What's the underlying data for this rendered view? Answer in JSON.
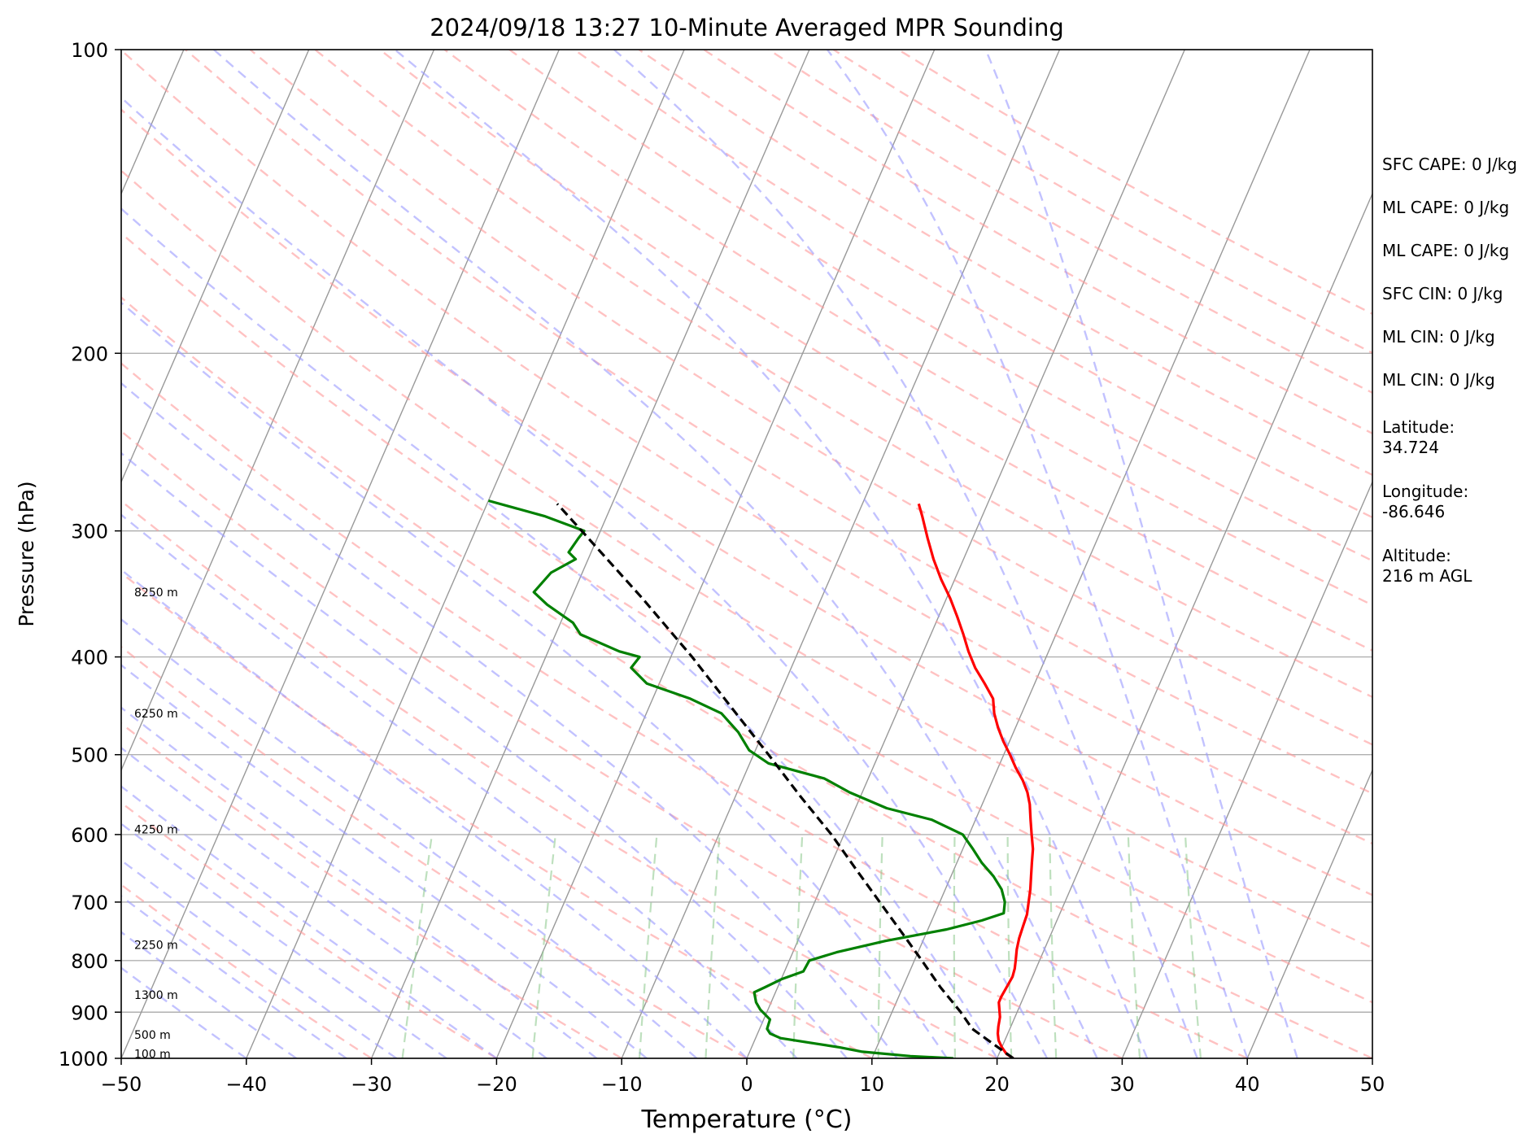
{
  "chart_data": {
    "type": "skew-t",
    "title": "2024/09/18 13:27 10-Minute Averaged MPR Sounding",
    "xlabel": "Temperature (°C)",
    "ylabel": "Pressure (hPa)",
    "xlim": [
      -50,
      50
    ],
    "ylim": [
      1000,
      100
    ],
    "yscale": "log",
    "x_ticks": [
      "−50",
      "−40",
      "−30",
      "−20",
      "−10",
      "0",
      "10",
      "20",
      "30",
      "40",
      "50"
    ],
    "y_ticks": [
      "100",
      "200",
      "300",
      "400",
      "500",
      "600",
      "700",
      "800",
      "900",
      "1000"
    ],
    "grid": true,
    "height_labels": [
      {
        "label": "100 m",
        "p": 990
      },
      {
        "label": "500 m",
        "p": 948
      },
      {
        "label": "1300 m",
        "p": 865
      },
      {
        "label": "2250 m",
        "p": 772
      },
      {
        "label": "4250 m",
        "p": 593
      },
      {
        "label": "6250 m",
        "p": 455
      },
      {
        "label": "8250 m",
        "p": 345
      }
    ],
    "series": [
      {
        "role": "temperature",
        "color": "#ff0000",
        "points": [
          [
            1000,
            21.3
          ],
          [
            990,
            20.6
          ],
          [
            975,
            20.0
          ],
          [
            960,
            19.5
          ],
          [
            945,
            19.2
          ],
          [
            930,
            19.0
          ],
          [
            910,
            18.8
          ],
          [
            895,
            18.5
          ],
          [
            880,
            18.2
          ],
          [
            868,
            18.2
          ],
          [
            850,
            18.3
          ],
          [
            830,
            18.4
          ],
          [
            815,
            18.3
          ],
          [
            800,
            18.1
          ],
          [
            780,
            17.8
          ],
          [
            760,
            17.6
          ],
          [
            740,
            17.5
          ],
          [
            720,
            17.4
          ],
          [
            700,
            17.1
          ],
          [
            680,
            16.8
          ],
          [
            660,
            16.4
          ],
          [
            640,
            16.0
          ],
          [
            620,
            15.6
          ],
          [
            600,
            15.0
          ],
          [
            580,
            14.4
          ],
          [
            560,
            13.8
          ],
          [
            545,
            13.2
          ],
          [
            530,
            12.4
          ],
          [
            515,
            11.4
          ],
          [
            500,
            10.5
          ],
          [
            485,
            9.5
          ],
          [
            470,
            8.6
          ],
          [
            455,
            7.8
          ],
          [
            440,
            7.2
          ],
          [
            425,
            6.0
          ],
          [
            410,
            4.7
          ],
          [
            395,
            3.6
          ],
          [
            380,
            2.6
          ],
          [
            365,
            1.5
          ],
          [
            350,
            0.3
          ],
          [
            335,
            -1.1
          ],
          [
            320,
            -2.4
          ],
          [
            305,
            -3.6
          ],
          [
            290,
            -4.8
          ],
          [
            282,
            -5.5
          ]
        ]
      },
      {
        "role": "dewpoint",
        "color": "#008000",
        "points": [
          [
            1000,
            16.5
          ],
          [
            995,
            13.0
          ],
          [
            985,
            9.0
          ],
          [
            975,
            7.0
          ],
          [
            965,
            4.5
          ],
          [
            955,
            2.0
          ],
          [
            945,
            1.0
          ],
          [
            935,
            0.6
          ],
          [
            915,
            0.5
          ],
          [
            895,
            -0.6
          ],
          [
            880,
            -1.2
          ],
          [
            860,
            -1.7
          ],
          [
            850,
            -1.0
          ],
          [
            835,
            0.0
          ],
          [
            820,
            1.5
          ],
          [
            800,
            1.6
          ],
          [
            785,
            3.5
          ],
          [
            765,
            7.0
          ],
          [
            745,
            11.5
          ],
          [
            730,
            14.0
          ],
          [
            718,
            15.5
          ],
          [
            700,
            15.2
          ],
          [
            680,
            14.5
          ],
          [
            660,
            13.4
          ],
          [
            640,
            12.0
          ],
          [
            620,
            10.8
          ],
          [
            600,
            9.5
          ],
          [
            580,
            6.5
          ],
          [
            565,
            2.5
          ],
          [
            545,
            -1.0
          ],
          [
            528,
            -3.5
          ],
          [
            510,
            -8.5
          ],
          [
            495,
            -10.5
          ],
          [
            475,
            -12.0
          ],
          [
            455,
            -14.0
          ],
          [
            440,
            -17.0
          ],
          [
            425,
            -21.0
          ],
          [
            410,
            -22.8
          ],
          [
            400,
            -22.5
          ],
          [
            395,
            -24.3
          ],
          [
            380,
            -28.0
          ],
          [
            370,
            -29.0
          ],
          [
            355,
            -31.7
          ],
          [
            345,
            -33.2
          ],
          [
            330,
            -32.5
          ],
          [
            320,
            -31.0
          ],
          [
            315,
            -31.8
          ],
          [
            305,
            -31.5
          ],
          [
            300,
            -31.3
          ],
          [
            290,
            -35.0
          ],
          [
            280,
            -40.0
          ]
        ]
      },
      {
        "role": "parcel",
        "color": "#000000",
        "points": [
          [
            1000,
            21.3
          ],
          [
            935,
            17.0
          ],
          [
            900,
            15.5
          ],
          [
            850,
            13.0
          ],
          [
            800,
            10.6
          ],
          [
            750,
            8.0
          ],
          [
            700,
            5.2
          ],
          [
            650,
            2.2
          ],
          [
            600,
            -1.0
          ],
          [
            550,
            -4.8
          ],
          [
            500,
            -8.8
          ],
          [
            450,
            -13.3
          ],
          [
            400,
            -18.3
          ],
          [
            350,
            -24.3
          ],
          [
            300,
            -31.5
          ],
          [
            282,
            -34.4
          ]
        ]
      }
    ],
    "background": {
      "dry_adiabats_color": "#ff9999",
      "moist_adiabats_color": "#9999ff",
      "mixing_ratio_color": "#88c788",
      "isotherms_color": "#999999"
    },
    "annotations": [
      "SFC CAPE: 0 J/kg",
      "ML CAPE: 0 J/kg",
      "ML CAPE: 0 J/kg",
      "SFC CIN: 0 J/kg",
      "ML CIN: 0 J/kg",
      "ML CIN: 0 J/kg",
      "Latitude:\n34.724",
      "Longitude:\n-86.646",
      "Altitude:\n216 m AGL"
    ]
  }
}
